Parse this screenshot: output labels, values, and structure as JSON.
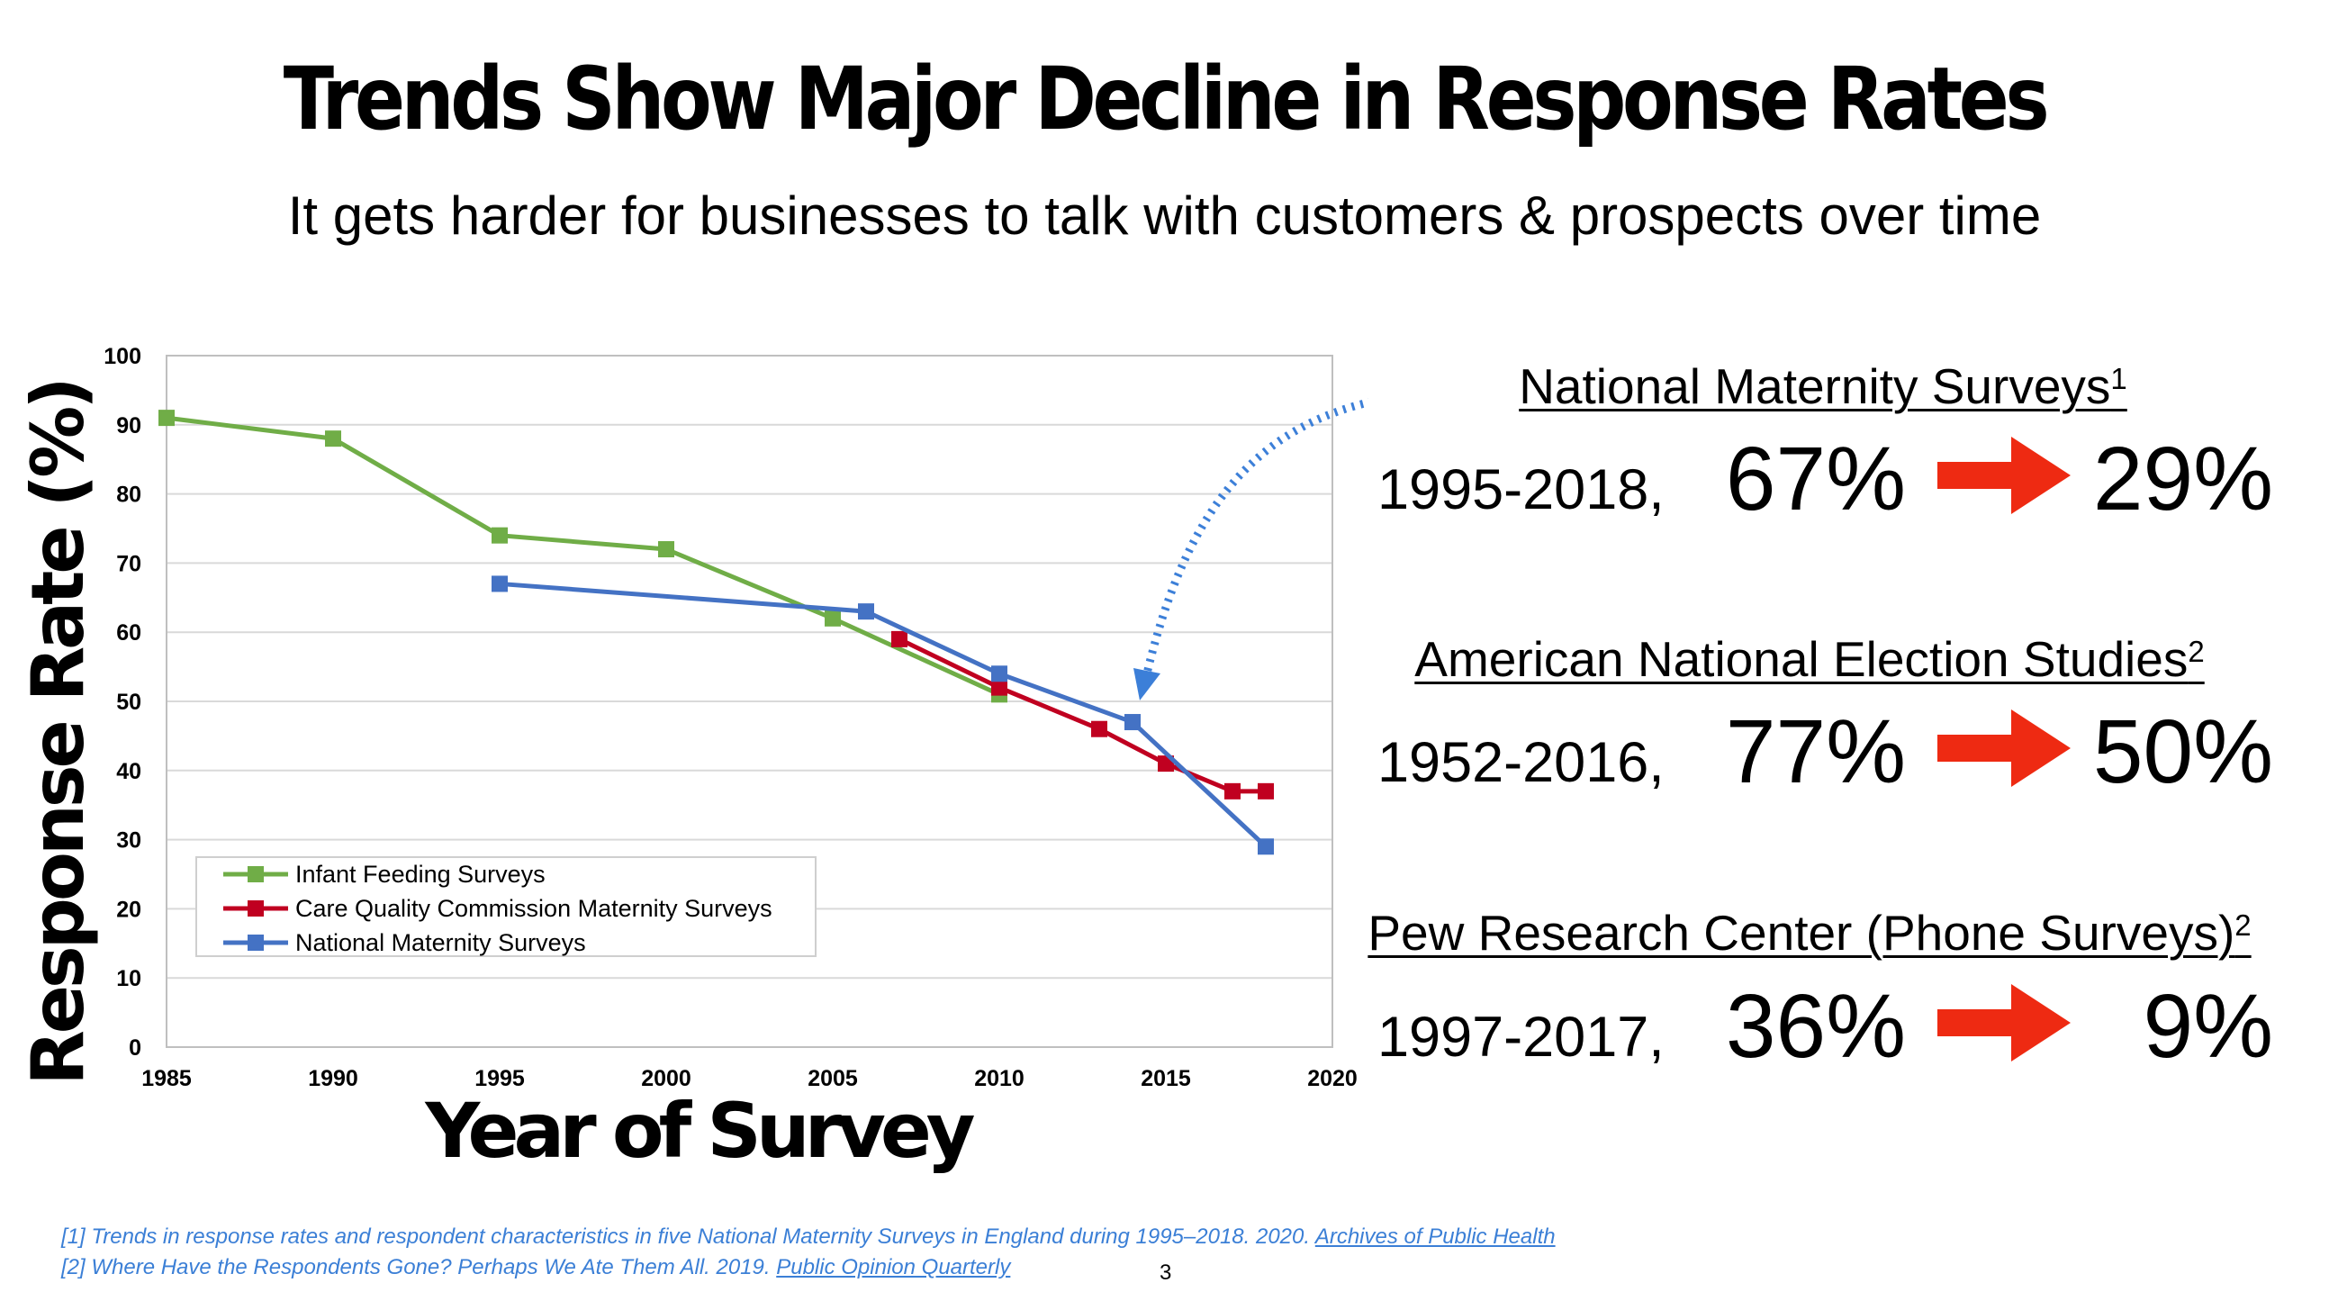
{
  "title": "Trends Show Major Decline in Response Rates",
  "subtitle": "It gets harder for businesses to talk with customers & prospects over time",
  "chart_data": {
    "type": "line",
    "title": "",
    "xlabel": "Year of Survey",
    "ylabel": "Response Rate (%)",
    "xlim": [
      1985,
      2020
    ],
    "ylim": [
      0,
      100
    ],
    "xticks": [
      1985,
      1990,
      1995,
      2000,
      2005,
      2010,
      2015,
      2020
    ],
    "yticks": [
      0,
      10,
      20,
      30,
      40,
      50,
      60,
      70,
      80,
      90,
      100
    ],
    "grid": true,
    "legend_position": "bottom-left",
    "series": [
      {
        "name": "Infant Feeding Surveys",
        "color": "#70ad47",
        "x": [
          1985,
          1990,
          1995,
          2000,
          2005,
          2010
        ],
        "y": [
          91,
          88,
          74,
          72,
          62,
          51
        ]
      },
      {
        "name": "Care Quality Commission Maternity Surveys",
        "color": "#c00020",
        "x": [
          2007,
          2010,
          2013,
          2015,
          2017,
          2018
        ],
        "y": [
          59,
          52,
          46,
          41,
          37,
          37
        ]
      },
      {
        "name": "National Maternity Surveys",
        "color": "#4472c4",
        "x": [
          1995,
          2006,
          2010,
          2014,
          2018
        ],
        "y": [
          67,
          63,
          54,
          47,
          29
        ]
      }
    ],
    "annotation": {
      "points_to": {
        "series": "National Maternity Surveys",
        "x": 2014,
        "y": 47
      },
      "style": "dotted curved arrow",
      "color": "#3c7fd8"
    }
  },
  "stats": [
    {
      "heading": "National Maternity Surveys",
      "ref": "1",
      "period": "1995-2018,",
      "from": "67%",
      "to": "29%"
    },
    {
      "heading": "American National Election Studies",
      "ref": "2",
      "period": "1952-2016,",
      "from": "77%",
      "to": "50%"
    },
    {
      "heading": "Pew Research Center (Phone Surveys)",
      "ref": "2",
      "period": "1997-2017,",
      "from": "36%",
      "to": "9%"
    }
  ],
  "arrow_color": "#ee2a12",
  "footnotes": [
    {
      "text": "[1] Trends in response rates and respondent characteristics in five National Maternity Surveys in England during 1995–2018. 2020. ",
      "link": "Archives of Public Health"
    },
    {
      "text": "[2] Where Have the Respondents Gone? Perhaps We Ate Them All. 2019. ",
      "link": "Public Opinion Quarterly"
    }
  ],
  "page_number": "3"
}
